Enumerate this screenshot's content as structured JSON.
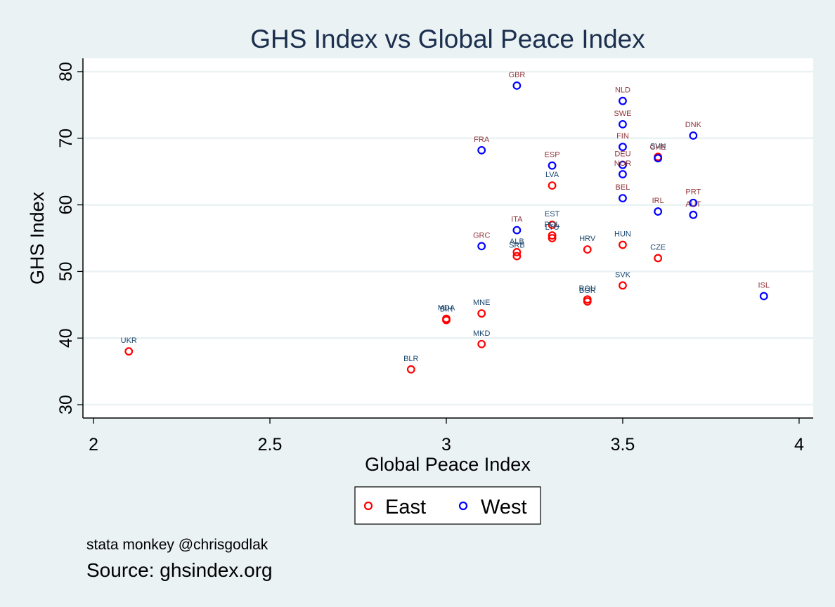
{
  "chart_data": {
    "type": "scatter",
    "title": "GHS Index vs Global Peace Index",
    "xlabel": "Global Peace Index",
    "ylabel": "GHS Index",
    "xlim": [
      1.97,
      4.04
    ],
    "ylim": [
      28.0,
      82.0
    ],
    "xticks": [
      2,
      2.5,
      3,
      3.5,
      4
    ],
    "xtick_labels": [
      "2",
      "2.5",
      "3",
      "3.5",
      "4"
    ],
    "yticks": [
      30,
      40,
      50,
      60,
      70,
      80
    ],
    "ytick_labels": [
      "30",
      "40",
      "50",
      "60",
      "70",
      "80"
    ],
    "grid": "horizontal",
    "legend_position": "bottom",
    "series": [
      {
        "name": "East",
        "color": "#ff0000",
        "label_color": "#1a476f",
        "points": [
          {
            "label": "UKR",
            "x": 2.1,
            "y": 38.0
          },
          {
            "label": "BLR",
            "x": 2.9,
            "y": 35.3
          },
          {
            "label": "MDA",
            "x": 3.0,
            "y": 42.9
          },
          {
            "label": "BIH",
            "x": 3.0,
            "y": 42.7
          },
          {
            "label": "MNE",
            "x": 3.1,
            "y": 43.7
          },
          {
            "label": "MKD",
            "x": 3.1,
            "y": 39.1
          },
          {
            "label": "ALB",
            "x": 3.2,
            "y": 52.9
          },
          {
            "label": "SRB",
            "x": 3.2,
            "y": 52.3
          },
          {
            "label": "LVA",
            "x": 3.3,
            "y": 62.9
          },
          {
            "label": "EST",
            "x": 3.3,
            "y": 57.0
          },
          {
            "label": "POL",
            "x": 3.3,
            "y": 55.4
          },
          {
            "label": "LTU",
            "x": 3.3,
            "y": 55.0
          },
          {
            "label": "HRV",
            "x": 3.4,
            "y": 53.3
          },
          {
            "label": "ROU",
            "x": 3.4,
            "y": 45.8
          },
          {
            "label": "BGR",
            "x": 3.4,
            "y": 45.5
          },
          {
            "label": "HUN",
            "x": 3.5,
            "y": 54.0
          },
          {
            "label": "SVK",
            "x": 3.5,
            "y": 47.9
          },
          {
            "label": "SVN",
            "x": 3.6,
            "y": 67.2
          },
          {
            "label": "CZE",
            "x": 3.6,
            "y": 52.0
          }
        ]
      },
      {
        "name": "West",
        "color": "#0000ff",
        "label_color": "#90353b",
        "points": [
          {
            "label": "GBR",
            "x": 3.2,
            "y": 77.9
          },
          {
            "label": "FRA",
            "x": 3.1,
            "y": 68.2
          },
          {
            "label": "GRC",
            "x": 3.1,
            "y": 53.8
          },
          {
            "label": "ITA",
            "x": 3.2,
            "y": 56.2
          },
          {
            "label": "ESP",
            "x": 3.3,
            "y": 65.9
          },
          {
            "label": "NLD",
            "x": 3.5,
            "y": 75.6
          },
          {
            "label": "SWE",
            "x": 3.5,
            "y": 72.1
          },
          {
            "label": "FIN",
            "x": 3.5,
            "y": 68.7
          },
          {
            "label": "DEU",
            "x": 3.5,
            "y": 66.0
          },
          {
            "label": "NOR",
            "x": 3.5,
            "y": 64.6
          },
          {
            "label": "BEL",
            "x": 3.5,
            "y": 61.0
          },
          {
            "label": "CHE",
            "x": 3.6,
            "y": 67.0
          },
          {
            "label": "IRL",
            "x": 3.6,
            "y": 59.0
          },
          {
            "label": "DNK",
            "x": 3.7,
            "y": 70.4
          },
          {
            "label": "PRT",
            "x": 3.7,
            "y": 60.3
          },
          {
            "label": "AUT",
            "x": 3.7,
            "y": 58.5
          },
          {
            "label": "ISL",
            "x": 3.9,
            "y": 46.3
          }
        ]
      }
    ]
  },
  "notes": {
    "small": "stata monkey @chrisgodlak",
    "source": "Source: ghsindex.org"
  }
}
